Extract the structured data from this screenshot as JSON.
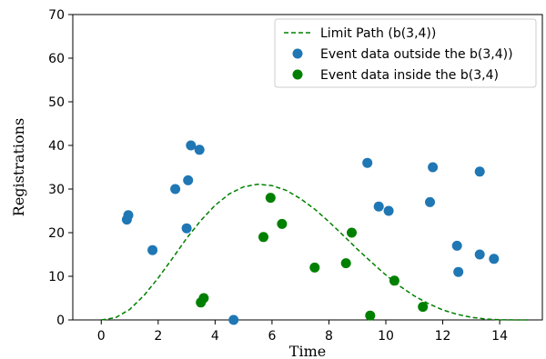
{
  "chart_data": {
    "type": "scatter",
    "xlabel": "Time",
    "ylabel": "Registrations",
    "xlim": [
      -1,
      15.5
    ],
    "ylim": [
      0,
      70
    ],
    "xticks": [
      0,
      2,
      4,
      6,
      8,
      10,
      12,
      14
    ],
    "yticks": [
      0,
      10,
      20,
      30,
      40,
      50,
      60,
      70
    ],
    "grid": false,
    "legend_position": "top-right",
    "line": {
      "name": "Limit Path (b(3,4))",
      "color": "#008000",
      "style": "dashed",
      "x": [
        0,
        0.5,
        1,
        1.5,
        2,
        2.5,
        3,
        3.5,
        4,
        4.5,
        5,
        5.5,
        6,
        6.5,
        7,
        7.5,
        8,
        8.5,
        9,
        9.5,
        10,
        10.5,
        11,
        11.5,
        12,
        12.5,
        13,
        13.5,
        14,
        14.5,
        15
      ],
      "y": [
        0,
        0.5,
        2.4,
        5.6,
        9.6,
        14.1,
        18.7,
        22.8,
        26.3,
        28.9,
        30.5,
        31.1,
        30.8,
        29.7,
        27.8,
        25.4,
        22.5,
        19.4,
        16.2,
        13.2,
        10.3,
        7.7,
        5.5,
        3.7,
        2.3,
        1.3,
        0.6,
        0.2,
        0.05,
        0,
        0
      ]
    },
    "series": [
      {
        "name": "Event data outside the b(3,4))",
        "color": "#1f77b4",
        "points": [
          {
            "x": 0.9,
            "y": 23
          },
          {
            "x": 0.95,
            "y": 24
          },
          {
            "x": 1.8,
            "y": 16
          },
          {
            "x": 2.6,
            "y": 30
          },
          {
            "x": 3.0,
            "y": 21
          },
          {
            "x": 3.05,
            "y": 32
          },
          {
            "x": 3.15,
            "y": 40
          },
          {
            "x": 3.45,
            "y": 39
          },
          {
            "x": 4.65,
            "y": 0
          },
          {
            "x": 9.35,
            "y": 36
          },
          {
            "x": 9.75,
            "y": 26
          },
          {
            "x": 10.1,
            "y": 25
          },
          {
            "x": 11.55,
            "y": 27
          },
          {
            "x": 11.65,
            "y": 35
          },
          {
            "x": 12.5,
            "y": 17
          },
          {
            "x": 12.55,
            "y": 11
          },
          {
            "x": 13.3,
            "y": 34
          },
          {
            "x": 13.3,
            "y": 15
          },
          {
            "x": 13.8,
            "y": 14
          }
        ]
      },
      {
        "name": "Event data inside the b(3,4)",
        "color": "#008000",
        "points": [
          {
            "x": 3.5,
            "y": 4
          },
          {
            "x": 3.6,
            "y": 5
          },
          {
            "x": 5.7,
            "y": 19
          },
          {
            "x": 5.95,
            "y": 28
          },
          {
            "x": 6.35,
            "y": 22
          },
          {
            "x": 7.5,
            "y": 12
          },
          {
            "x": 8.6,
            "y": 13
          },
          {
            "x": 8.8,
            "y": 20
          },
          {
            "x": 9.45,
            "y": 1
          },
          {
            "x": 10.3,
            "y": 9
          },
          {
            "x": 11.3,
            "y": 3
          }
        ]
      }
    ]
  }
}
